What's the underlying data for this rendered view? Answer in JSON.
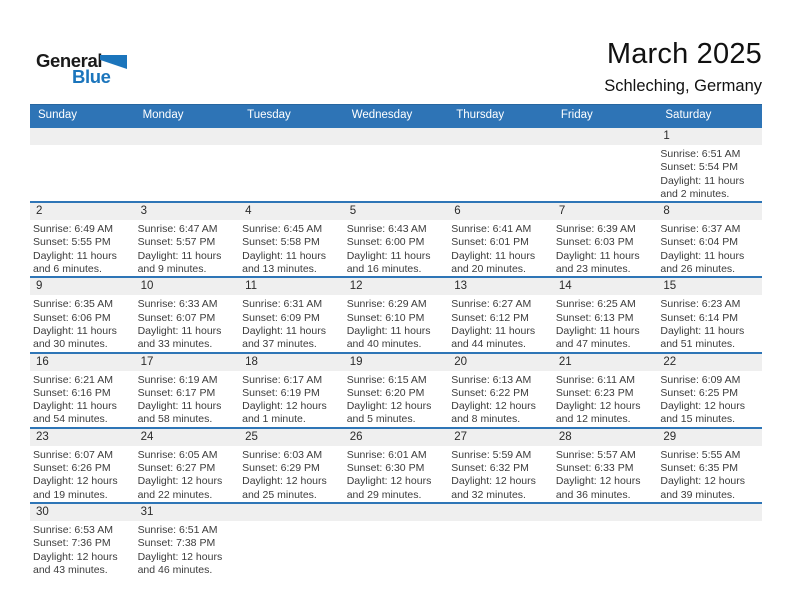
{
  "logo": {
    "part1": "General",
    "part2": "Blue"
  },
  "header": {
    "title": "March 2025",
    "subtitle": "Schleching, Germany"
  },
  "colors": {
    "header_blue": "#2e74b6",
    "week_line_blue": "#2e75b6",
    "day_band_gray": "#efefef",
    "logo_blue": "#1b75bc",
    "text_dark": "#3c3c3c"
  },
  "calendar": {
    "weekdays": [
      "Sunday",
      "Monday",
      "Tuesday",
      "Wednesday",
      "Thursday",
      "Friday",
      "Saturday"
    ],
    "labels": {
      "sunrise": "Sunrise:",
      "sunset": "Sunset:",
      "daylight": "Daylight:"
    },
    "weeks": [
      [
        null,
        null,
        null,
        null,
        null,
        null,
        {
          "day": 1,
          "sunrise": "6:51 AM",
          "sunset": "5:54 PM",
          "daylight": "11 hours and 2 minutes."
        }
      ],
      [
        {
          "day": 2,
          "sunrise": "6:49 AM",
          "sunset": "5:55 PM",
          "daylight": "11 hours and 6 minutes."
        },
        {
          "day": 3,
          "sunrise": "6:47 AM",
          "sunset": "5:57 PM",
          "daylight": "11 hours and 9 minutes."
        },
        {
          "day": 4,
          "sunrise": "6:45 AM",
          "sunset": "5:58 PM",
          "daylight": "11 hours and 13 minutes."
        },
        {
          "day": 5,
          "sunrise": "6:43 AM",
          "sunset": "6:00 PM",
          "daylight": "11 hours and 16 minutes."
        },
        {
          "day": 6,
          "sunrise": "6:41 AM",
          "sunset": "6:01 PM",
          "daylight": "11 hours and 20 minutes."
        },
        {
          "day": 7,
          "sunrise": "6:39 AM",
          "sunset": "6:03 PM",
          "daylight": "11 hours and 23 minutes."
        },
        {
          "day": 8,
          "sunrise": "6:37 AM",
          "sunset": "6:04 PM",
          "daylight": "11 hours and 26 minutes."
        }
      ],
      [
        {
          "day": 9,
          "sunrise": "6:35 AM",
          "sunset": "6:06 PM",
          "daylight": "11 hours and 30 minutes."
        },
        {
          "day": 10,
          "sunrise": "6:33 AM",
          "sunset": "6:07 PM",
          "daylight": "11 hours and 33 minutes."
        },
        {
          "day": 11,
          "sunrise": "6:31 AM",
          "sunset": "6:09 PM",
          "daylight": "11 hours and 37 minutes."
        },
        {
          "day": 12,
          "sunrise": "6:29 AM",
          "sunset": "6:10 PM",
          "daylight": "11 hours and 40 minutes."
        },
        {
          "day": 13,
          "sunrise": "6:27 AM",
          "sunset": "6:12 PM",
          "daylight": "11 hours and 44 minutes."
        },
        {
          "day": 14,
          "sunrise": "6:25 AM",
          "sunset": "6:13 PM",
          "daylight": "11 hours and 47 minutes."
        },
        {
          "day": 15,
          "sunrise": "6:23 AM",
          "sunset": "6:14 PM",
          "daylight": "11 hours and 51 minutes."
        }
      ],
      [
        {
          "day": 16,
          "sunrise": "6:21 AM",
          "sunset": "6:16 PM",
          "daylight": "11 hours and 54 minutes."
        },
        {
          "day": 17,
          "sunrise": "6:19 AM",
          "sunset": "6:17 PM",
          "daylight": "11 hours and 58 minutes."
        },
        {
          "day": 18,
          "sunrise": "6:17 AM",
          "sunset": "6:19 PM",
          "daylight": "12 hours and 1 minute."
        },
        {
          "day": 19,
          "sunrise": "6:15 AM",
          "sunset": "6:20 PM",
          "daylight": "12 hours and 5 minutes."
        },
        {
          "day": 20,
          "sunrise": "6:13 AM",
          "sunset": "6:22 PM",
          "daylight": "12 hours and 8 minutes."
        },
        {
          "day": 21,
          "sunrise": "6:11 AM",
          "sunset": "6:23 PM",
          "daylight": "12 hours and 12 minutes."
        },
        {
          "day": 22,
          "sunrise": "6:09 AM",
          "sunset": "6:25 PM",
          "daylight": "12 hours and 15 minutes."
        }
      ],
      [
        {
          "day": 23,
          "sunrise": "6:07 AM",
          "sunset": "6:26 PM",
          "daylight": "12 hours and 19 minutes."
        },
        {
          "day": 24,
          "sunrise": "6:05 AM",
          "sunset": "6:27 PM",
          "daylight": "12 hours and 22 minutes."
        },
        {
          "day": 25,
          "sunrise": "6:03 AM",
          "sunset": "6:29 PM",
          "daylight": "12 hours and 25 minutes."
        },
        {
          "day": 26,
          "sunrise": "6:01 AM",
          "sunset": "6:30 PM",
          "daylight": "12 hours and 29 minutes."
        },
        {
          "day": 27,
          "sunrise": "5:59 AM",
          "sunset": "6:32 PM",
          "daylight": "12 hours and 32 minutes."
        },
        {
          "day": 28,
          "sunrise": "5:57 AM",
          "sunset": "6:33 PM",
          "daylight": "12 hours and 36 minutes."
        },
        {
          "day": 29,
          "sunrise": "5:55 AM",
          "sunset": "6:35 PM",
          "daylight": "12 hours and 39 minutes."
        }
      ],
      [
        {
          "day": 30,
          "sunrise": "6:53 AM",
          "sunset": "7:36 PM",
          "daylight": "12 hours and 43 minutes."
        },
        {
          "day": 31,
          "sunrise": "6:51 AM",
          "sunset": "7:38 PM",
          "daylight": "12 hours and 46 minutes."
        },
        null,
        null,
        null,
        null,
        null
      ]
    ]
  }
}
